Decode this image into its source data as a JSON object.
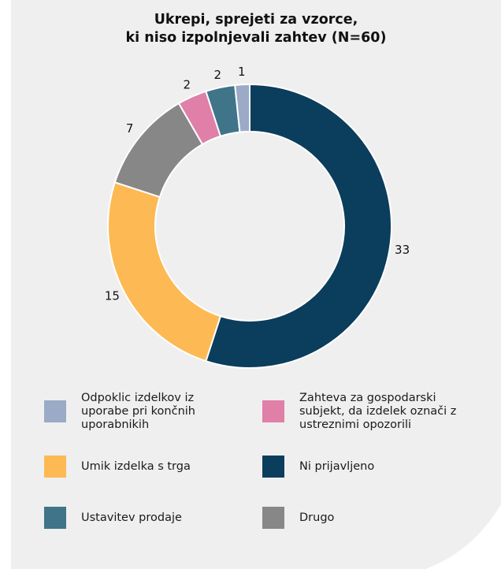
{
  "chart_data": {
    "type": "donut",
    "title": [
      "Ukrepi, sprejeti za vzorce,",
      "ki niso izpolnjevali zahtev (N=60)"
    ],
    "categories": [
      "Ni prijavljeno",
      "Umik izdelka s trga",
      "Drugo",
      "Zahteva za gospodarski subjekt, da izdelek označi z ustreznimi opozorili",
      "Ustavitev prodaje",
      "Odpoklic izdelkov iz uporabe pri končnih uporabnikih"
    ],
    "values": [
      33,
      15,
      7,
      2,
      2,
      1
    ],
    "colors": [
      "#0b3d5c",
      "#fdb954",
      "#878787",
      "#e07fa8",
      "#3f7489",
      "#9aaac7"
    ]
  }
}
